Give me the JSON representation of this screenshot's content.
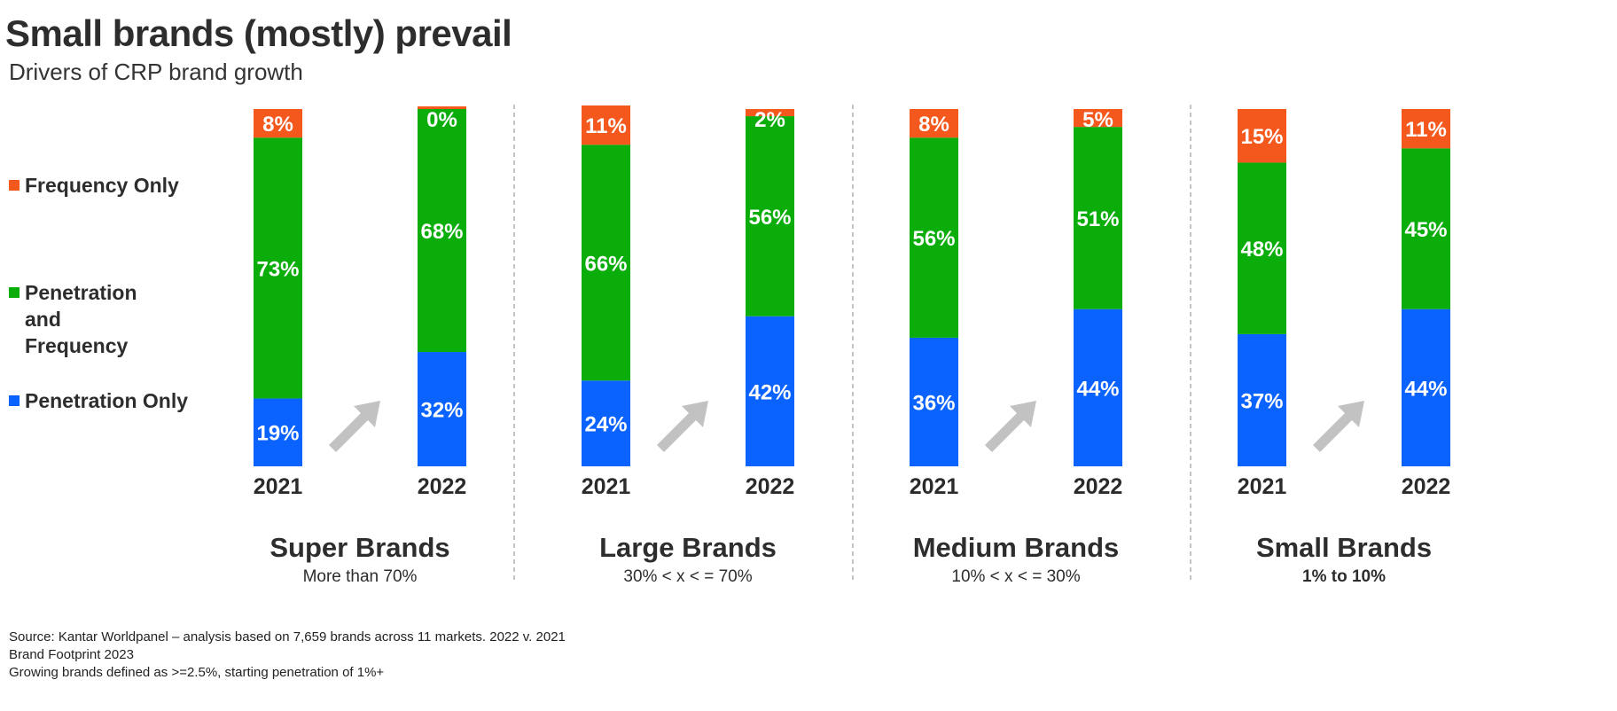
{
  "title": "Small brands (mostly) prevail",
  "subtitle": "Drivers of CRP brand growth",
  "legend": [
    {
      "label": "Frequency Only",
      "color": "#f4581c"
    },
    {
      "label": "Penetration and\nFrequency",
      "color": "#0aad0a"
    },
    {
      "label": "Penetration Only",
      "color": "#0b63ff"
    }
  ],
  "footer": [
    "Source: Kantar Worldpanel – analysis based on 7,659  brands across 11 markets. 2022 v. 2021",
    "Brand Footprint 2023",
    "Growing brands defined as >=2.5%, starting penetration of 1%+"
  ],
  "chart_data": {
    "type": "bar",
    "stacked": true,
    "percent_stacked": true,
    "categories": [
      "2021",
      "2022"
    ],
    "series_order": [
      "Penetration Only",
      "Penetration and Frequency",
      "Frequency Only"
    ],
    "colors": {
      "Penetration Only": "#0b63ff",
      "Penetration and Frequency": "#0aad0a",
      "Frequency Only": "#f4581c"
    },
    "groups": [
      {
        "name": "Super Brands",
        "subtitle": "More than 70%",
        "bars": [
          {
            "year": "2021",
            "values": {
              "Penetration Only": 19,
              "Penetration and Frequency": 73,
              "Frequency Only": 8
            }
          },
          {
            "year": "2022",
            "values": {
              "Penetration Only": 32,
              "Penetration and Frequency": 68,
              "Frequency Only": 0
            }
          }
        ]
      },
      {
        "name": "Large Brands",
        "subtitle": "30% < x < = 70%",
        "bars": [
          {
            "year": "2021",
            "values": {
              "Penetration Only": 24,
              "Penetration and Frequency": 66,
              "Frequency Only": 11
            }
          },
          {
            "year": "2022",
            "values": {
              "Penetration Only": 42,
              "Penetration and Frequency": 56,
              "Frequency Only": 2
            }
          }
        ]
      },
      {
        "name": "Medium Brands",
        "subtitle": "10% < x < = 30%",
        "bars": [
          {
            "year": "2021",
            "values": {
              "Penetration Only": 36,
              "Penetration and Frequency": 56,
              "Frequency Only": 8
            }
          },
          {
            "year": "2022",
            "values": {
              "Penetration Only": 44,
              "Penetration and Frequency": 51,
              "Frequency Only": 5
            }
          }
        ]
      },
      {
        "name": "Small Brands",
        "subtitle": "1% to 10%",
        "bars": [
          {
            "year": "2021",
            "values": {
              "Penetration Only": 37,
              "Penetration and Frequency": 48,
              "Frequency Only": 15
            }
          },
          {
            "year": "2022",
            "values": {
              "Penetration Only": 44,
              "Penetration and Frequency": 45,
              "Frequency Only": 11
            }
          }
        ]
      }
    ],
    "data_labels": true,
    "legend_position": "left",
    "grid": false,
    "ylim": [
      0,
      100
    ]
  }
}
